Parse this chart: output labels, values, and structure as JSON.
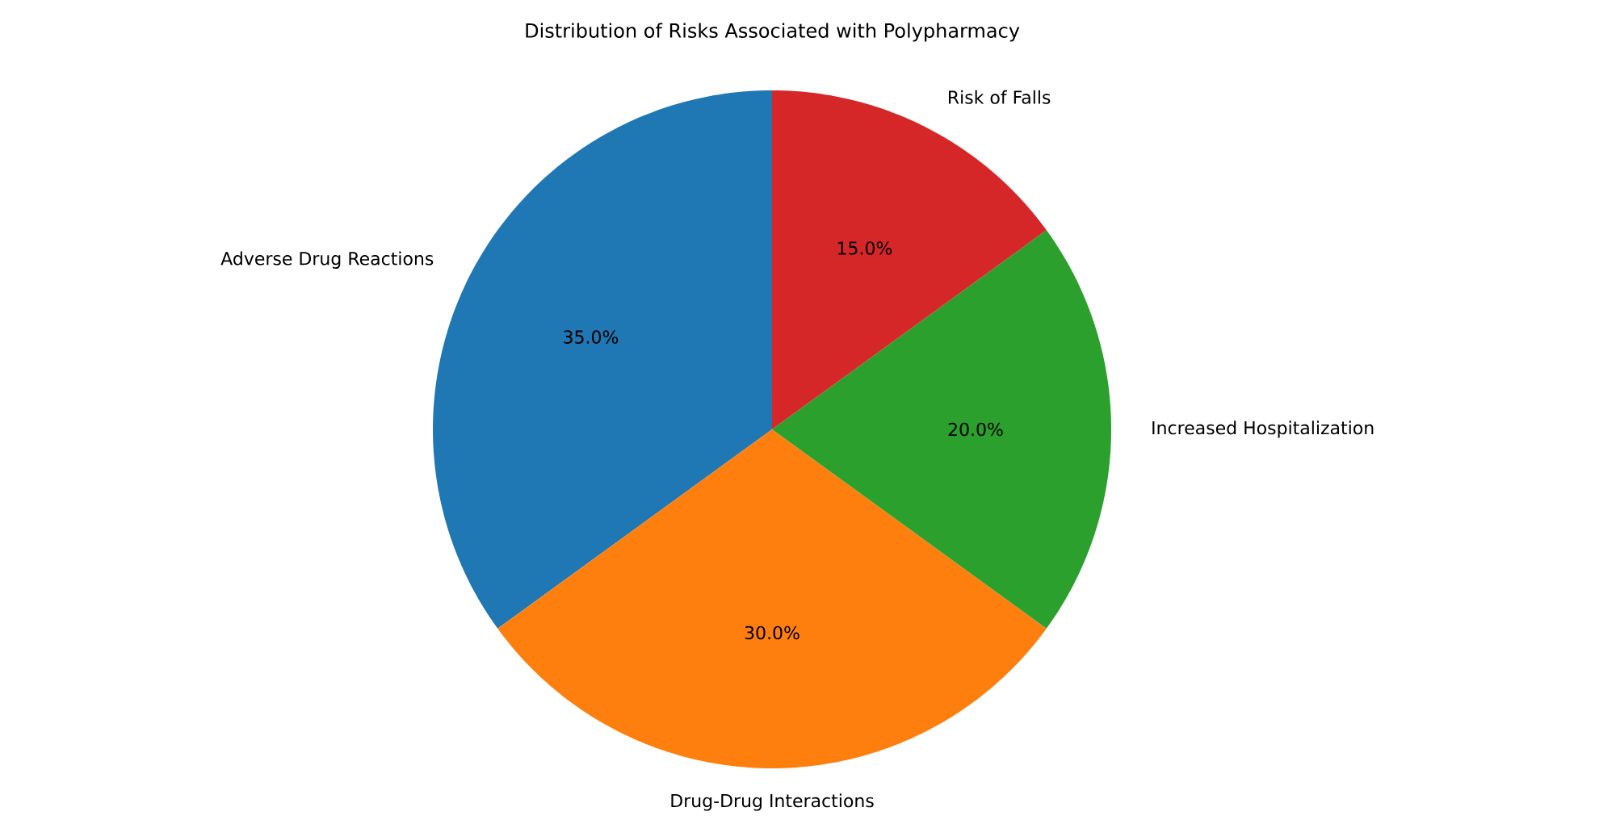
{
  "chart_data": {
    "type": "pie",
    "title": "Distribution of Risks Associated with Polypharmacy",
    "categories": [
      "Adverse Drug Reactions",
      "Drug-Drug Interactions",
      "Increased Hospitalization",
      "Risk of Falls"
    ],
    "values": [
      35,
      30,
      20,
      15
    ],
    "colors": [
      "#1f77b4",
      "#ff7f0e",
      "#2ca02c",
      "#d62728"
    ],
    "value_labels": [
      "35.0%",
      "30.0%",
      "20.0%",
      "15.0%"
    ]
  }
}
